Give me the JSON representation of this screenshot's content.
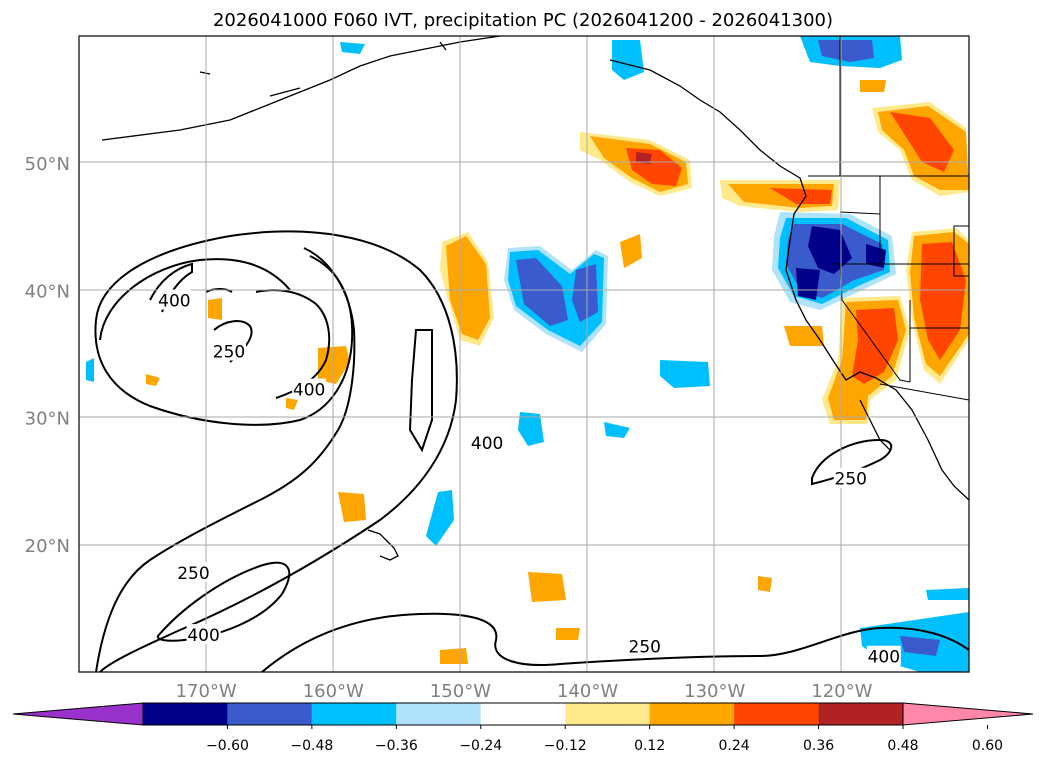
{
  "title": "2026041000 F060 IVT, precipitation PC (2026041200 - 2026041300)",
  "lat_labels": [
    {
      "text": "50°N",
      "lat": 50
    },
    {
      "text": "40°N",
      "lat": 40
    },
    {
      "text": "30°N",
      "lat": 30
    },
    {
      "text": "20°N",
      "lat": 20
    }
  ],
  "lon_labels": [
    {
      "text": "170°W",
      "lon": -170
    },
    {
      "text": "160°W",
      "lon": -160
    },
    {
      "text": "150°W",
      "lon": -150
    },
    {
      "text": "140°W",
      "lon": -140
    },
    {
      "text": "130°W",
      "lon": -130
    },
    {
      "text": "120°W",
      "lon": -120
    }
  ],
  "colorbar": {
    "ticks": [
      "−0.60",
      "−0.48",
      "−0.36",
      "−0.24",
      "−0.12",
      "0.12",
      "0.24",
      "0.36",
      "0.48",
      "0.60"
    ],
    "colors": [
      "#9932cc",
      "#00008b",
      "#3a5bcc",
      "#00bfff",
      "#aee3fb",
      "#ffffff",
      "#ffe98a",
      "#ffa500",
      "#ff4500",
      "#b22222",
      "#ff88aa"
    ]
  },
  "ivt_contour_labels": [
    {
      "text": "400",
      "lon": -172.5,
      "lat": 39.2
    },
    {
      "text": "250",
      "lon": -168.2,
      "lat": 35.2
    },
    {
      "text": "400",
      "lon": -161.9,
      "lat": 32.2
    },
    {
      "text": "400",
      "lon": -147.9,
      "lat": 28.0
    },
    {
      "text": "250",
      "lon": -171.0,
      "lat": 17.8
    },
    {
      "text": "400",
      "lon": -170.2,
      "lat": 12.9
    },
    {
      "text": "250",
      "lon": -135.5,
      "lat": 12.0
    },
    {
      "text": "250",
      "lon": -119.3,
      "lat": 25.2
    },
    {
      "text": "400",
      "lon": -116.7,
      "lat": 11.2
    }
  ],
  "map_extent": {
    "lon_min": -180,
    "lon_max": -110,
    "lat_min": 10,
    "lat_max": 60
  }
}
